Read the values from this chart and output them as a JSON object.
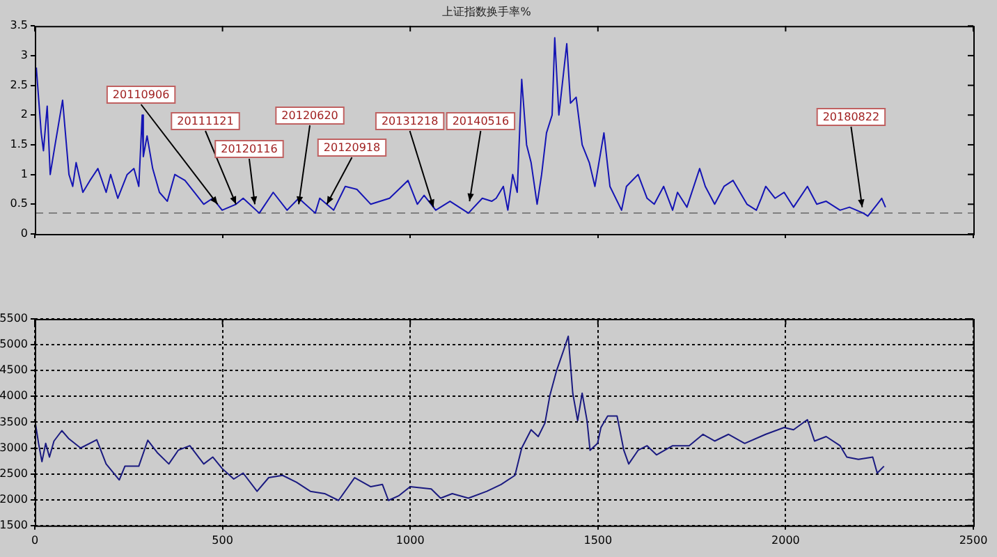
{
  "chart_data": [
    {
      "type": "line",
      "title": "上证指数换手率%",
      "x": [
        4,
        17,
        23,
        33,
        41,
        54,
        62,
        74,
        91,
        101,
        110,
        128,
        147,
        168,
        190,
        202,
        221,
        246,
        264,
        277,
        286,
        289,
        299,
        314,
        332,
        353,
        373,
        400,
        425,
        450,
        474,
        499,
        536,
        555,
        598,
        635,
        672,
        703,
        747,
        759,
        796,
        827,
        858,
        895,
        945,
        994,
        1019,
        1037,
        1068,
        1106,
        1155,
        1192,
        1217,
        1229,
        1248,
        1260,
        1273,
        1285,
        1297,
        1310,
        1322,
        1338,
        1350,
        1363,
        1378,
        1385,
        1396,
        1417,
        1427,
        1442,
        1458,
        1477,
        1492,
        1516,
        1532,
        1563,
        1576,
        1607,
        1631,
        1650,
        1675,
        1699,
        1712,
        1737,
        1771,
        1786,
        1811,
        1836,
        1860,
        1897,
        1922,
        1935,
        1947,
        1972,
        1996,
        2021,
        2058,
        2083,
        2108,
        2145,
        2170,
        2207,
        2219,
        2244,
        2256,
        2266
      ],
      "series": [
        {
          "color": "#1414b4",
          "values": [
            2.8,
            1.7,
            1.4,
            2.15,
            1.0,
            1.5,
            1.8,
            2.25,
            1.0,
            0.8,
            1.2,
            0.7,
            0.9,
            1.1,
            0.7,
            1.0,
            0.6,
            1.0,
            1.1,
            0.8,
            2.0,
            1.3,
            1.65,
            1.1,
            0.7,
            0.55,
            1.0,
            0.9,
            0.7,
            0.5,
            0.6,
            0.4,
            0.5,
            0.6,
            0.35,
            0.7,
            0.4,
            0.6,
            0.35,
            0.6,
            0.4,
            0.8,
            0.75,
            0.5,
            0.6,
            0.9,
            0.5,
            0.65,
            0.4,
            0.55,
            0.35,
            0.6,
            0.55,
            0.6,
            0.8,
            0.4,
            1.0,
            0.7,
            2.6,
            1.5,
            1.2,
            0.5,
            1.0,
            1.7,
            2.0,
            3.3,
            2.0,
            3.2,
            2.2,
            2.3,
            1.5,
            1.2,
            0.8,
            1.7,
            0.8,
            0.4,
            0.8,
            1.0,
            0.6,
            0.5,
            0.8,
            0.4,
            0.7,
            0.45,
            1.1,
            0.8,
            0.5,
            0.8,
            0.9,
            0.5,
            0.4,
            0.6,
            0.8,
            0.6,
            0.7,
            0.45,
            0.8,
            0.5,
            0.55,
            0.4,
            0.45,
            0.35,
            0.3,
            0.5,
            0.6,
            0.45
          ]
        }
      ],
      "xlim": [
        0,
        2500
      ],
      "xticks": [
        0,
        500,
        1000,
        1500,
        2000,
        2500
      ],
      "ylim": [
        0,
        3.5
      ],
      "yticks": [
        0,
        0.5,
        1,
        1.5,
        2,
        2.5,
        3,
        3.5
      ],
      "tick_labels": "y",
      "grid": false,
      "ref_lines": [
        {
          "axis": "y",
          "value": 0.35,
          "color": "#808080",
          "line_style": "dashed"
        }
      ],
      "annotations": [
        {
          "text": "20110906",
          "x": 487,
          "y": 0.5
        },
        {
          "text": "20111121",
          "x": 536,
          "y": 0.5
        },
        {
          "text": "20120116",
          "x": 586,
          "y": 0.5
        },
        {
          "text": "20120620",
          "x": 703,
          "y": 0.5
        },
        {
          "text": "20120918",
          "x": 778,
          "y": 0.5
        },
        {
          "text": "20131218",
          "x": 1062,
          "y": 0.45
        },
        {
          "text": "20140516",
          "x": 1158,
          "y": 0.55
        },
        {
          "text": "20180822",
          "x": 2204,
          "y": 0.45
        }
      ]
    },
    {
      "type": "line",
      "x": [
        2,
        10,
        19,
        29,
        39,
        51,
        72,
        91,
        122,
        165,
        190,
        225,
        240,
        277,
        301,
        326,
        357,
        382,
        413,
        450,
        474,
        499,
        530,
        555,
        592,
        623,
        660,
        697,
        734,
        772,
        809,
        852,
        895,
        926,
        942,
        969,
        1000,
        1056,
        1081,
        1112,
        1155,
        1204,
        1242,
        1279,
        1297,
        1322,
        1341,
        1359,
        1372,
        1390,
        1409,
        1421,
        1433,
        1446,
        1458,
        1471,
        1479,
        1499,
        1508,
        1526,
        1551,
        1569,
        1582,
        1607,
        1631,
        1656,
        1699,
        1743,
        1780,
        1811,
        1848,
        1891,
        1947,
        1996,
        2021,
        2058,
        2077,
        2108,
        2145,
        2163,
        2194,
        2232,
        2244,
        2262
      ],
      "series": [
        {
          "color": "#1a1a80",
          "values": [
            3460,
            3090,
            2736,
            3090,
            2825,
            3135,
            3337,
            3178,
            3000,
            3160,
            2692,
            2383,
            2648,
            2648,
            3151,
            2913,
            2692,
            2957,
            3045,
            2692,
            2825,
            2604,
            2400,
            2515,
            2162,
            2427,
            2471,
            2339,
            2162,
            2118,
            1986,
            2427,
            2251,
            2295,
            1986,
            2074,
            2251,
            2207,
            2030,
            2118,
            2030,
            2162,
            2295,
            2471,
            3000,
            3354,
            3222,
            3487,
            4017,
            4502,
            4900,
            5164,
            4061,
            3531,
            4061,
            3531,
            2957,
            3090,
            3398,
            3619,
            3619,
            2957,
            2692,
            2957,
            3045,
            2868,
            3045,
            3045,
            3266,
            3135,
            3266,
            3090,
            3266,
            3398,
            3354,
            3549,
            3135,
            3222,
            3045,
            2825,
            2781,
            2825,
            2515,
            2648
          ]
        }
      ],
      "xlim": [
        0,
        2500
      ],
      "xticks": [
        0,
        500,
        1000,
        1500,
        2000,
        2500
      ],
      "ylim": [
        1500,
        5500
      ],
      "yticks": [
        1500,
        2000,
        2500,
        3000,
        3500,
        4000,
        4500,
        5000,
        5500
      ],
      "grid": true
    }
  ]
}
